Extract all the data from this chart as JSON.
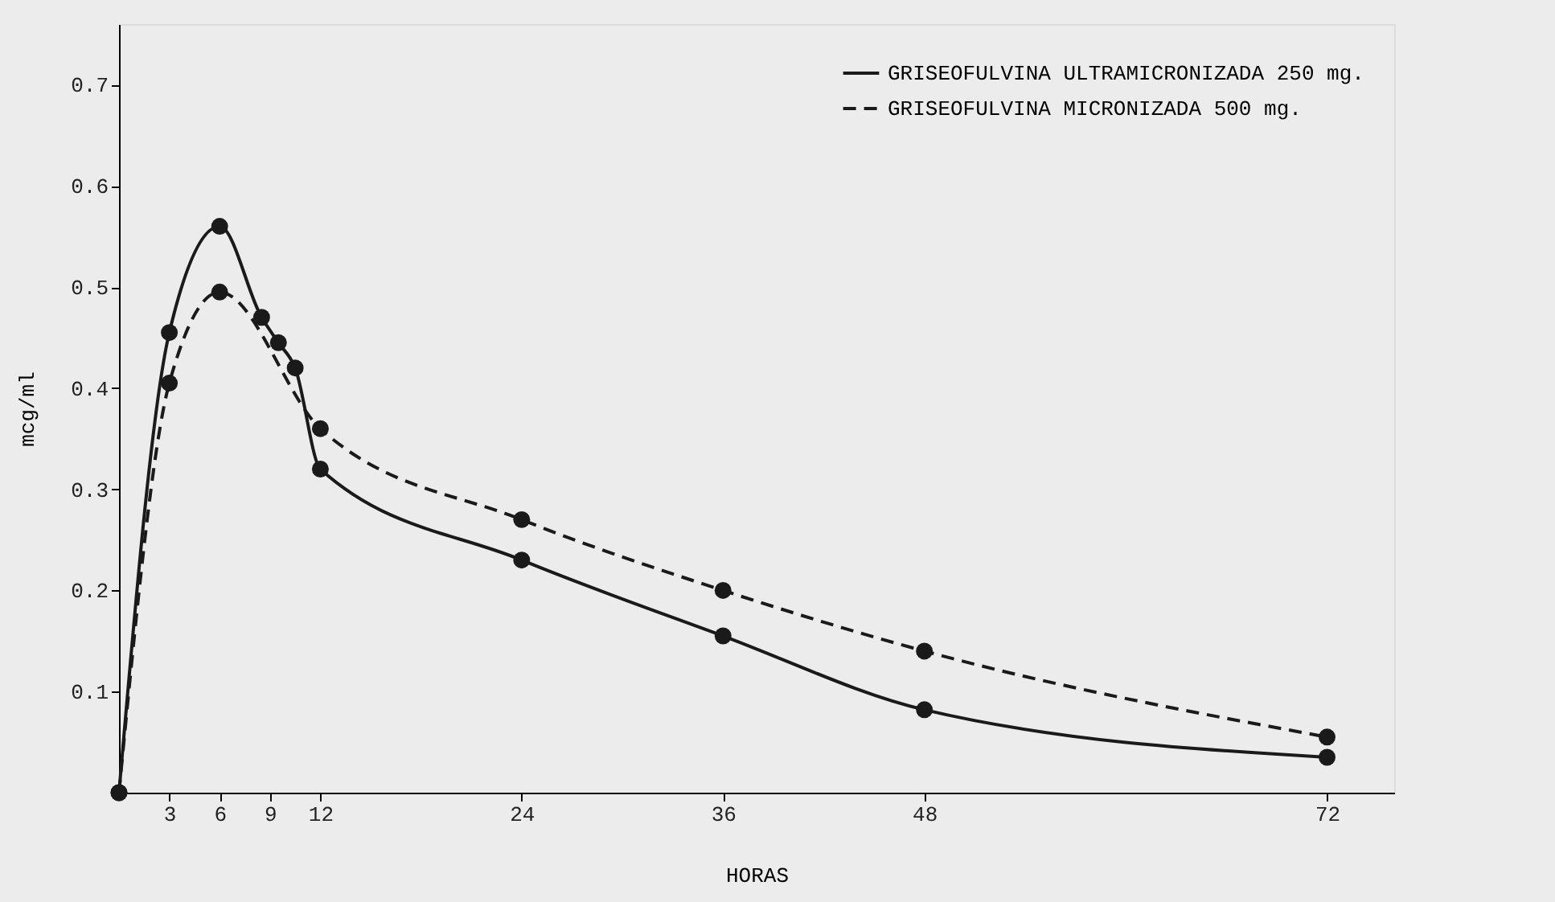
{
  "chart_data": {
    "type": "line",
    "xlabel": "HORAS",
    "ylabel": "mcg/ml",
    "xlim": [
      0,
      76
    ],
    "xticks": [
      3,
      6,
      9,
      12,
      24,
      36,
      48,
      72
    ],
    "ylim": [
      0,
      0.76
    ],
    "yticks": [
      0.1,
      0.2,
      0.3,
      0.4,
      0.5,
      0.6,
      0.7
    ],
    "grid": false,
    "legend": "top right",
    "marker": "circle",
    "series": [
      {
        "name": "GRISEOFULVINA ULTRAMICRONIZADA 250 mg.",
        "color": "#1a1a1a",
        "line_style": "solid",
        "x": [
          0,
          3,
          6,
          8.5,
          9.5,
          10.5,
          12,
          24,
          36,
          48,
          72
        ],
        "values": [
          0,
          0.455,
          0.56,
          0.47,
          0.445,
          0.42,
          0.32,
          0.23,
          0.155,
          0.082,
          0.035
        ]
      },
      {
        "name": "GRISEOFULVINA MICRONIZADA 500 mg.",
        "color": "#1a1a1a",
        "line_style": "dashed",
        "x": [
          0,
          3,
          6,
          12,
          24,
          36,
          48,
          72
        ],
        "values": [
          0,
          0.405,
          0.495,
          0.36,
          0.27,
          0.2,
          0.14,
          0.055
        ]
      }
    ]
  }
}
